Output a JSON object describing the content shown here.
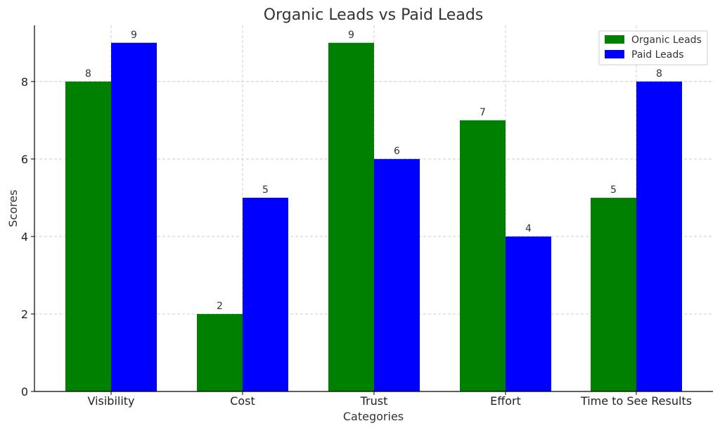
{
  "chart_data": {
    "type": "bar",
    "title": "Organic Leads vs Paid Leads",
    "xlabel": "Categories",
    "ylabel": "Scores",
    "categories": [
      "Visibility",
      "Cost",
      "Trust",
      "Effort",
      "Time to See Results"
    ],
    "series": [
      {
        "name": "Organic Leads",
        "color": "#008000",
        "values": [
          8,
          2,
          9,
          7,
          5
        ]
      },
      {
        "name": "Paid Leads",
        "color": "#0000ff",
        "values": [
          9,
          5,
          6,
          4,
          8
        ]
      }
    ],
    "ylim": [
      0,
      9.45
    ],
    "yticks": [
      "0",
      "2",
      "4",
      "6",
      "8"
    ],
    "grid": true,
    "legend_position": "top-right",
    "data_labels": true
  }
}
